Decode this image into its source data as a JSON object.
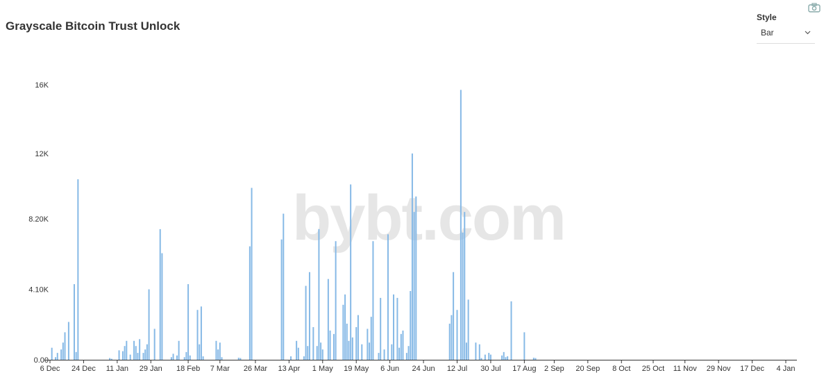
{
  "header": {
    "title": "Grayscale Bitcoin Trust Unlock"
  },
  "controls": {
    "style_label": "Style",
    "style_value": "Bar",
    "camera_icon": "camera-icon",
    "chevron_icon": "chevron-down-icon"
  },
  "watermark": "bybt.com",
  "colors": {
    "bar": "#86b9e6",
    "axis": "#333333"
  },
  "chart_data": {
    "type": "bar",
    "title": "Grayscale Bitcoin Trust Unlock",
    "xlabel": "",
    "ylabel": "",
    "ylim": [
      0,
      16000
    ],
    "y_ticks": [
      0,
      4100,
      8200,
      12000,
      16000
    ],
    "y_tick_labels": [
      "0.00",
      "4.10K",
      "8.20K",
      "12K",
      "16K"
    ],
    "x_range": [
      "2020-12-06",
      "2022-01-07"
    ],
    "x_tick_dates": [
      "2020-12-06",
      "2020-12-24",
      "2021-01-11",
      "2021-01-29",
      "2021-02-18",
      "2021-03-07",
      "2021-03-26",
      "2021-04-13",
      "2021-05-01",
      "2021-05-19",
      "2021-06-06",
      "2021-06-24",
      "2021-07-12",
      "2021-07-30",
      "2021-08-17",
      "2021-09-02",
      "2021-09-20",
      "2021-10-08",
      "2021-10-25",
      "2021-11-11",
      "2021-11-29",
      "2021-12-17",
      "2022-01-04"
    ],
    "x_tick_labels": [
      "6 Dec",
      "24 Dec",
      "11 Jan",
      "29 Jan",
      "18 Feb",
      "7 Mar",
      "26 Mar",
      "13 Apr",
      "1 May",
      "19 May",
      "6 Jun",
      "24 Jun",
      "12 Jul",
      "30 Jul",
      "17 Aug",
      "2 Sep",
      "20 Sep",
      "8 Oct",
      "25 Oct",
      "11 Nov",
      "29 Nov",
      "17 Dec",
      "4 Jan"
    ],
    "series": [
      {
        "points": [
          [
            "2020-12-07",
            700
          ],
          [
            "2020-12-09",
            150
          ],
          [
            "2020-12-10",
            400
          ],
          [
            "2020-12-12",
            600
          ],
          [
            "2020-12-13",
            1000
          ],
          [
            "2020-12-14",
            1600
          ],
          [
            "2020-12-16",
            2200
          ],
          [
            "2020-12-19",
            4400
          ],
          [
            "2020-12-20",
            450
          ],
          [
            "2020-12-21",
            10500
          ],
          [
            "2021-01-07",
            100
          ],
          [
            "2021-01-08",
            60
          ],
          [
            "2021-01-12",
            550
          ],
          [
            "2021-01-14",
            500
          ],
          [
            "2021-01-15",
            800
          ],
          [
            "2021-01-16",
            1100
          ],
          [
            "2021-01-18",
            300
          ],
          [
            "2021-01-20",
            1100
          ],
          [
            "2021-01-21",
            800
          ],
          [
            "2021-01-22",
            400
          ],
          [
            "2021-01-23",
            1200
          ],
          [
            "2021-01-25",
            400
          ],
          [
            "2021-01-26",
            600
          ],
          [
            "2021-01-27",
            900
          ],
          [
            "2021-01-28",
            4100
          ],
          [
            "2021-01-31",
            1800
          ],
          [
            "2021-02-03",
            7600
          ],
          [
            "2021-02-04",
            6200
          ],
          [
            "2021-02-09",
            150
          ],
          [
            "2021-02-10",
            350
          ],
          [
            "2021-02-12",
            250
          ],
          [
            "2021-02-13",
            1100
          ],
          [
            "2021-02-16",
            150
          ],
          [
            "2021-02-17",
            450
          ],
          [
            "2021-02-18",
            4400
          ],
          [
            "2021-02-19",
            250
          ],
          [
            "2021-02-23",
            2900
          ],
          [
            "2021-02-24",
            900
          ],
          [
            "2021-02-25",
            3100
          ],
          [
            "2021-02-26",
            200
          ],
          [
            "2021-03-05",
            1100
          ],
          [
            "2021-03-06",
            600
          ],
          [
            "2021-03-07",
            1000
          ],
          [
            "2021-03-08",
            150
          ],
          [
            "2021-03-17",
            120
          ],
          [
            "2021-03-18",
            100
          ],
          [
            "2021-03-23",
            6600
          ],
          [
            "2021-03-24",
            10000
          ],
          [
            "2021-04-09",
            7000
          ],
          [
            "2021-04-10",
            8500
          ],
          [
            "2021-04-14",
            200
          ],
          [
            "2021-04-17",
            1100
          ],
          [
            "2021-04-18",
            700
          ],
          [
            "2021-04-21",
            200
          ],
          [
            "2021-04-22",
            4300
          ],
          [
            "2021-04-23",
            800
          ],
          [
            "2021-04-24",
            5100
          ],
          [
            "2021-04-26",
            1900
          ],
          [
            "2021-04-28",
            800
          ],
          [
            "2021-04-29",
            7600
          ],
          [
            "2021-04-30",
            1000
          ],
          [
            "2021-05-01",
            600
          ],
          [
            "2021-05-04",
            4700
          ],
          [
            "2021-05-05",
            1700
          ],
          [
            "2021-05-07",
            1500
          ],
          [
            "2021-05-08",
            6900
          ],
          [
            "2021-05-12",
            3200
          ],
          [
            "2021-05-13",
            3800
          ],
          [
            "2021-05-14",
            2100
          ],
          [
            "2021-05-15",
            1100
          ],
          [
            "2021-05-16",
            10200
          ],
          [
            "2021-05-17",
            1300
          ],
          [
            "2021-05-19",
            1900
          ],
          [
            "2021-05-20",
            2600
          ],
          [
            "2021-05-22",
            900
          ],
          [
            "2021-05-25",
            1800
          ],
          [
            "2021-05-26",
            1000
          ],
          [
            "2021-05-27",
            2500
          ],
          [
            "2021-05-28",
            6900
          ],
          [
            "2021-05-31",
            400
          ],
          [
            "2021-06-01",
            3600
          ],
          [
            "2021-06-03",
            600
          ],
          [
            "2021-06-05",
            7300
          ],
          [
            "2021-06-07",
            900
          ],
          [
            "2021-06-08",
            3800
          ],
          [
            "2021-06-10",
            3600
          ],
          [
            "2021-06-11",
            700
          ],
          [
            "2021-06-12",
            1500
          ],
          [
            "2021-06-13",
            1700
          ],
          [
            "2021-06-15",
            400
          ],
          [
            "2021-06-16",
            800
          ],
          [
            "2021-06-17",
            4000
          ],
          [
            "2021-06-18",
            12000
          ],
          [
            "2021-06-19",
            8600
          ],
          [
            "2021-06-20",
            9500
          ],
          [
            "2021-07-08",
            2100
          ],
          [
            "2021-07-09",
            2600
          ],
          [
            "2021-07-10",
            5100
          ],
          [
            "2021-07-12",
            2900
          ],
          [
            "2021-07-14",
            15700
          ],
          [
            "2021-07-15",
            7400
          ],
          [
            "2021-07-16",
            8600
          ],
          [
            "2021-07-17",
            1000
          ],
          [
            "2021-07-18",
            3500
          ],
          [
            "2021-07-22",
            1000
          ],
          [
            "2021-07-24",
            900
          ],
          [
            "2021-07-25",
            100
          ],
          [
            "2021-07-27",
            300
          ],
          [
            "2021-07-29",
            400
          ],
          [
            "2021-07-30",
            300
          ],
          [
            "2021-08-05",
            250
          ],
          [
            "2021-08-06",
            450
          ],
          [
            "2021-08-07",
            150
          ],
          [
            "2021-08-08",
            200
          ],
          [
            "2021-08-10",
            3400
          ],
          [
            "2021-08-17",
            1600
          ],
          [
            "2021-08-22",
            120
          ],
          [
            "2021-08-23",
            100
          ]
        ]
      }
    ]
  }
}
